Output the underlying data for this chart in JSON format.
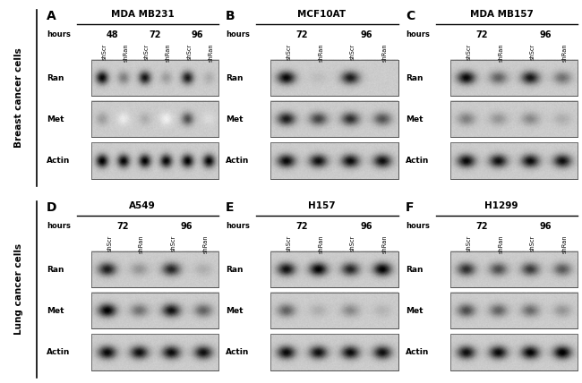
{
  "panels": [
    {
      "label": "A",
      "title": "MDA MB231",
      "hours": [
        "48",
        "72",
        "96"
      ],
      "lanes": [
        "shScr",
        "shRan",
        "shScr",
        "shRan",
        "shScr",
        "shRan"
      ],
      "n_lanes": 6,
      "row": 0,
      "col": 0,
      "blots": {
        "Ran": [
          0.85,
          0.45,
          0.8,
          0.35,
          0.78,
          0.3
        ],
        "Met": [
          0.35,
          0.1,
          0.3,
          0.08,
          0.6,
          0.15
        ],
        "Actin": [
          0.88,
          0.86,
          0.87,
          0.85,
          0.87,
          0.86
        ]
      }
    },
    {
      "label": "B",
      "title": "MCF10AT",
      "hours": [
        "72",
        "96"
      ],
      "lanes": [
        "shScr",
        "shRan",
        "shScr",
        "shRan"
      ],
      "n_lanes": 4,
      "row": 0,
      "col": 1,
      "blots": {
        "Ran": [
          0.85,
          0.25,
          0.78,
          0.2
        ],
        "Met": [
          0.78,
          0.65,
          0.72,
          0.6
        ],
        "Actin": [
          0.85,
          0.83,
          0.84,
          0.83
        ]
      }
    },
    {
      "label": "C",
      "title": "MDA MB157",
      "hours": [
        "72",
        "96"
      ],
      "lanes": [
        "shScr",
        "shRan",
        "shScr",
        "shRan"
      ],
      "n_lanes": 4,
      "row": 0,
      "col": 2,
      "blots": {
        "Ran": [
          0.85,
          0.55,
          0.8,
          0.5
        ],
        "Met": [
          0.45,
          0.38,
          0.42,
          0.3
        ],
        "Actin": [
          0.85,
          0.83,
          0.84,
          0.83
        ]
      }
    },
    {
      "label": "D",
      "title": "A549",
      "hours": [
        "72",
        "96"
      ],
      "lanes": [
        "shScr",
        "shRan",
        "shScr",
        "shRan"
      ],
      "n_lanes": 4,
      "row": 1,
      "col": 0,
      "blots": {
        "Ran": [
          0.78,
          0.38,
          0.75,
          0.3
        ],
        "Met": [
          0.88,
          0.5,
          0.82,
          0.55
        ],
        "Actin": [
          0.85,
          0.83,
          0.84,
          0.83
        ]
      }
    },
    {
      "label": "E",
      "title": "H157",
      "hours": [
        "72",
        "96"
      ],
      "lanes": [
        "shScr",
        "shRan",
        "shScr",
        "shRan"
      ],
      "n_lanes": 4,
      "row": 1,
      "col": 1,
      "blots": {
        "Ran": [
          0.82,
          0.88,
          0.75,
          0.88
        ],
        "Met": [
          0.55,
          0.3,
          0.42,
          0.28
        ],
        "Actin": [
          0.85,
          0.83,
          0.84,
          0.83
        ]
      }
    },
    {
      "label": "F",
      "title": "H1299",
      "hours": [
        "72",
        "96"
      ],
      "lanes": [
        "shScr",
        "shRan",
        "shScr",
        "shRan"
      ],
      "n_lanes": 4,
      "row": 1,
      "col": 2,
      "blots": {
        "Ran": [
          0.72,
          0.62,
          0.68,
          0.58
        ],
        "Met": [
          0.62,
          0.55,
          0.52,
          0.38
        ],
        "Actin": [
          0.83,
          0.85,
          0.87,
          0.9
        ]
      }
    }
  ],
  "row_labels": [
    "Breast cancer cells",
    "Lung cancer cells"
  ],
  "bg_color": "#ffffff",
  "text_color": "#000000"
}
